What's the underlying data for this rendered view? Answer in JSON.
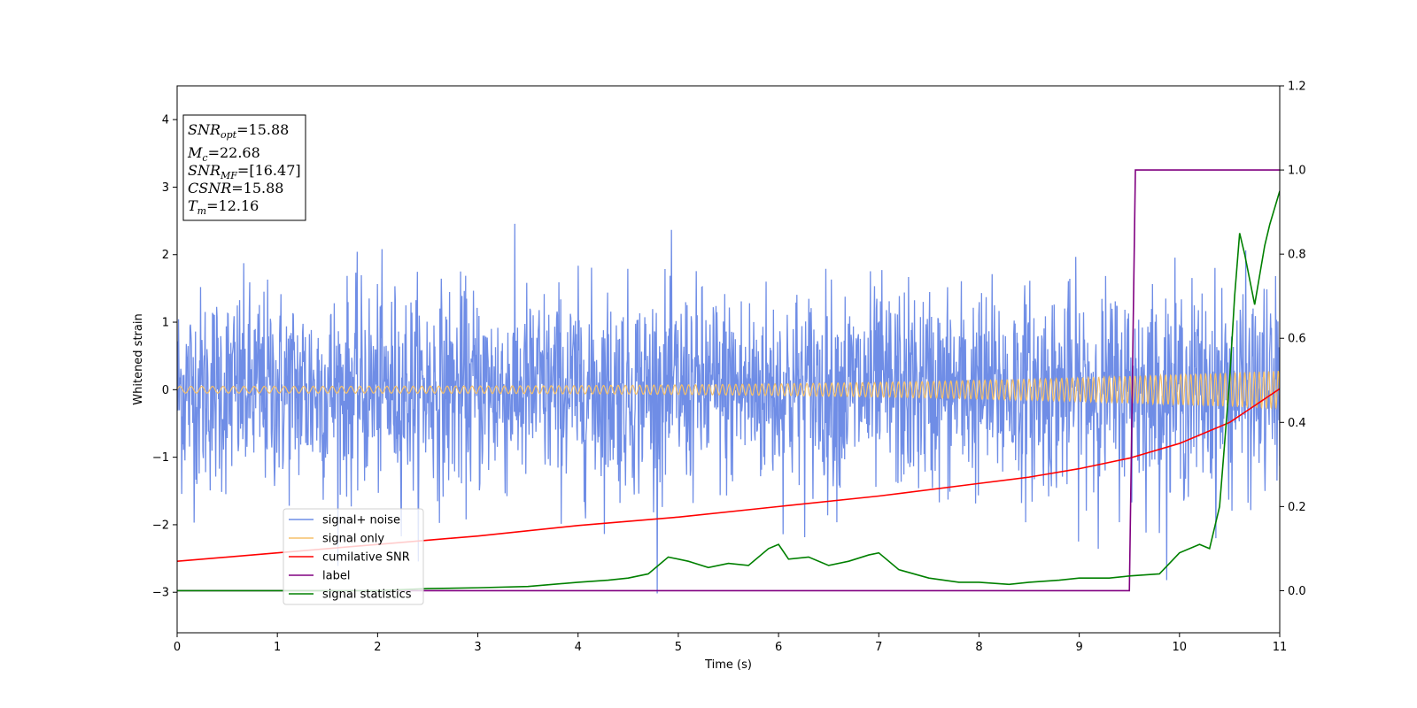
{
  "chart_data": {
    "type": "line",
    "title": "",
    "xlabel": "Time (s)",
    "ylabel": "Whitened strain",
    "xlim": [
      0,
      11
    ],
    "ylim": [
      -3.6,
      4.5
    ],
    "y2lim": [
      -0.1,
      1.2
    ],
    "x_ticks": [
      0,
      1,
      2,
      3,
      4,
      5,
      6,
      7,
      8,
      9,
      10,
      11
    ],
    "y_ticks": [
      -3,
      -2,
      -1,
      0,
      1,
      2,
      3,
      4
    ],
    "y_tick_labels": [
      "−3",
      "−2",
      "−1",
      "0",
      "1",
      "2",
      "3",
      "4"
    ],
    "y2_ticks": [
      0.0,
      0.2,
      0.4,
      0.6,
      0.8,
      1.0,
      1.2
    ],
    "y2_tick_labels": [
      "0.0",
      "0.2",
      "0.4",
      "0.6",
      "0.8",
      "1.0",
      "1.2"
    ],
    "grid": false,
    "legend_position": "lower-left",
    "series": [
      {
        "name": "signal+ noise",
        "axis": "left",
        "color": "#6f8de6",
        "style": "noise",
        "noise_sigma": 0.75,
        "x_range": [
          0,
          11
        ]
      },
      {
        "name": "signal only",
        "axis": "left",
        "color": "#f5c06a",
        "style": "chirp",
        "amplitude_range": [
          0.05,
          0.28
        ],
        "x_range": [
          0,
          11
        ]
      },
      {
        "name": "cumilative SNR",
        "axis": "right",
        "color": "#ff0000",
        "x": [
          0,
          1,
          2,
          3,
          4,
          5,
          6,
          7,
          8,
          8.5,
          9,
          9.5,
          10,
          10.5,
          11
        ],
        "y": [
          0.07,
          0.09,
          0.11,
          0.13,
          0.155,
          0.175,
          0.2,
          0.225,
          0.255,
          0.27,
          0.29,
          0.315,
          0.35,
          0.4,
          0.48
        ]
      },
      {
        "name": "label",
        "axis": "right",
        "color": "#800080",
        "x": [
          0,
          9.5,
          9.56,
          11
        ],
        "y": [
          0.0,
          0.0,
          1.0,
          1.0
        ]
      },
      {
        "name": "signal statistics",
        "axis": "right",
        "color": "#008000",
        "x": [
          0,
          1,
          2,
          2.5,
          3,
          3.5,
          4,
          4.3,
          4.5,
          4.7,
          4.9,
          5.1,
          5.3,
          5.5,
          5.7,
          5.9,
          6.0,
          6.1,
          6.3,
          6.5,
          6.7,
          6.9,
          7.0,
          7.2,
          7.5,
          7.8,
          8.0,
          8.3,
          8.5,
          8.8,
          9.0,
          9.3,
          9.5,
          9.8,
          10.0,
          10.2,
          10.3,
          10.4,
          10.5,
          10.55,
          10.6,
          10.65,
          10.75,
          10.8,
          10.85,
          10.9,
          10.95,
          11.0
        ],
        "y": [
          0.0,
          0.0,
          0.0,
          0.005,
          0.007,
          0.01,
          0.02,
          0.025,
          0.03,
          0.04,
          0.08,
          0.07,
          0.055,
          0.065,
          0.06,
          0.1,
          0.11,
          0.075,
          0.08,
          0.06,
          0.07,
          0.085,
          0.09,
          0.05,
          0.03,
          0.02,
          0.02,
          0.015,
          0.02,
          0.025,
          0.03,
          0.03,
          0.035,
          0.04,
          0.09,
          0.11,
          0.1,
          0.2,
          0.5,
          0.7,
          0.85,
          0.8,
          0.68,
          0.75,
          0.82,
          0.87,
          0.91,
          0.95
        ]
      }
    ],
    "annotation": {
      "lines": [
        {
          "base": "SNR",
          "sub": "opt",
          "value": "=15.88"
        },
        {
          "base": "M",
          "sub": "c",
          "value": "=22.68"
        },
        {
          "base": "SNR",
          "sub": "MF",
          "value": "=[16.47]"
        },
        {
          "base": "CSNR",
          "sub": "",
          "value": "=15.88"
        },
        {
          "base": "T",
          "sub": "m",
          "value": "=12.16"
        }
      ]
    }
  }
}
